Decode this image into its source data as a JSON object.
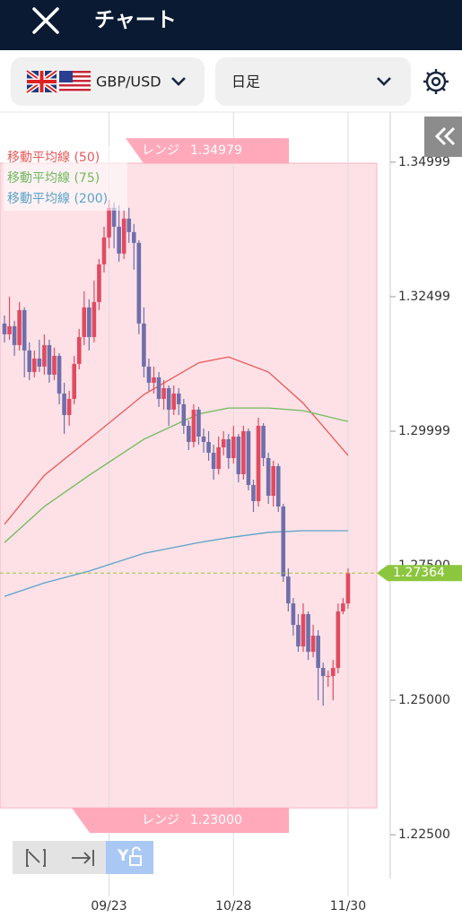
{
  "header": {
    "title": "チャート"
  },
  "toolbar": {
    "pair": "GBP/USD",
    "timeframe": "日足"
  },
  "chart_data": {
    "type": "candlestick",
    "categories": [
      null,
      null,
      null,
      null,
      null,
      null,
      null,
      null,
      null,
      null,
      null,
      null,
      null,
      null,
      null,
      null,
      null,
      null,
      null,
      null,
      null,
      "09/23",
      null,
      null,
      null,
      null,
      null,
      null,
      null,
      null,
      null,
      null,
      null,
      null,
      null,
      null,
      null,
      null,
      null,
      null,
      null,
      null,
      null,
      null,
      null,
      null,
      "10/28",
      null,
      null,
      null,
      null,
      null,
      null,
      null,
      null,
      null,
      null,
      null,
      null,
      null,
      null,
      null,
      null,
      null,
      null,
      null,
      null,
      null,
      null,
      "11/30"
    ],
    "open": [
      1.32,
      1.318,
      1.3195,
      1.316,
      1.3225,
      1.315,
      1.311,
      1.3135,
      1.312,
      1.316,
      1.3105,
      1.314,
      1.307,
      1.303,
      1.306,
      1.3125,
      1.3175,
      1.323,
      1.3175,
      1.324,
      1.331,
      1.336,
      1.3415,
      1.338,
      1.333,
      1.3395,
      1.337,
      1.335,
      1.32,
      1.312,
      1.309,
      1.31,
      1.306,
      1.308,
      1.304,
      1.307,
      1.305,
      1.301,
      1.298,
      1.304,
      1.299,
      1.298,
      1.296,
      1.293,
      1.297,
      1.2985,
      1.295,
      1.299,
      1.292,
      1.3,
      1.29,
      1.287,
      1.301,
      1.295,
      1.288,
      1.2935,
      1.286,
      1.273,
      1.268,
      1.264,
      1.26,
      1.266,
      1.259,
      1.262,
      1.256,
      1.2545,
      1.2545,
      1.256,
      1.2665,
      1.268
    ],
    "high": [
      1.3215,
      1.325,
      1.3205,
      1.324,
      1.323,
      1.3165,
      1.315,
      1.317,
      1.318,
      1.317,
      1.3155,
      1.3145,
      1.309,
      1.3075,
      1.314,
      1.319,
      1.326,
      1.3245,
      1.328,
      1.332,
      1.338,
      1.343,
      1.3425,
      1.342,
      1.341,
      1.3415,
      1.3385,
      1.3355,
      1.323,
      1.3135,
      1.312,
      1.311,
      1.3095,
      1.3085,
      1.3085,
      1.308,
      1.306,
      1.302,
      1.305,
      1.3045,
      1.3005,
      1.3,
      1.2975,
      1.299,
      1.3,
      1.2995,
      1.301,
      1.2995,
      1.301,
      1.3005,
      1.291,
      1.3025,
      1.3015,
      1.296,
      1.2945,
      1.294,
      1.2865,
      1.2745,
      1.269,
      1.266,
      1.268,
      1.2665,
      1.264,
      1.263,
      1.257,
      1.2555,
      1.2575,
      1.268,
      1.269,
      1.2745
    ],
    "low": [
      1.3165,
      1.317,
      1.314,
      1.315,
      1.31,
      1.3095,
      1.31,
      1.311,
      1.3105,
      1.309,
      1.3095,
      1.305,
      1.2995,
      1.301,
      1.305,
      1.3115,
      1.316,
      1.315,
      1.3165,
      1.3225,
      1.3295,
      1.334,
      1.334,
      1.3315,
      1.332,
      1.335,
      1.33,
      1.318,
      1.31,
      1.3075,
      1.307,
      1.3045,
      1.304,
      1.301,
      1.303,
      1.303,
      1.2995,
      1.2965,
      1.297,
      1.2975,
      1.296,
      1.2945,
      1.291,
      1.292,
      1.2955,
      1.293,
      1.294,
      1.2905,
      1.291,
      1.289,
      1.285,
      1.286,
      1.2935,
      1.2865,
      1.286,
      1.285,
      1.272,
      1.2665,
      1.262,
      1.259,
      1.259,
      1.2575,
      1.258,
      1.25,
      1.249,
      1.2525,
      1.25,
      1.255,
      1.266,
      1.267
    ],
    "close": [
      1.318,
      1.3195,
      1.316,
      1.3225,
      1.315,
      1.311,
      1.3135,
      1.312,
      1.316,
      1.3105,
      1.314,
      1.307,
      1.303,
      1.306,
      1.3125,
      1.3175,
      1.323,
      1.3175,
      1.324,
      1.331,
      1.336,
      1.3415,
      1.338,
      1.333,
      1.3395,
      1.337,
      1.335,
      1.32,
      1.312,
      1.309,
      1.31,
      1.306,
      1.308,
      1.304,
      1.307,
      1.305,
      1.301,
      1.298,
      1.304,
      1.299,
      1.298,
      1.296,
      1.293,
      1.297,
      1.2985,
      1.295,
      1.299,
      1.292,
      1.3,
      1.29,
      1.287,
      1.301,
      1.295,
      1.288,
      1.2935,
      1.286,
      1.273,
      1.268,
      1.264,
      1.26,
      1.266,
      1.259,
      1.262,
      1.256,
      1.2545,
      1.2545,
      1.256,
      1.2665,
      1.268,
      1.27364
    ],
    "up_color": "#e04b62",
    "down_color": "#6f6fab",
    "series": [
      {
        "name": "移動平均線 (50)",
        "color": "#e8585a",
        "x": [
          0,
          8,
          17,
          28,
          39,
          45,
          53,
          60,
          69
        ],
        "values": [
          1.2827,
          1.2918,
          1.2985,
          1.3068,
          1.3127,
          1.3138,
          1.311,
          1.3052,
          1.2955
        ]
      },
      {
        "name": "移動平均線 (75)",
        "color": "#6dba5c",
        "x": [
          0,
          8,
          17,
          28,
          39,
          45,
          53,
          60,
          69
        ],
        "values": [
          1.2793,
          1.286,
          1.2918,
          1.2985,
          1.3032,
          1.3043,
          1.3043,
          1.3038,
          1.3018
        ]
      },
      {
        "name": "移動平均線 (200)",
        "color": "#5ba3c9",
        "x": [
          0,
          8,
          17,
          28,
          39,
          45,
          53,
          60,
          69
        ],
        "values": [
          1.2693,
          1.2718,
          1.274,
          1.2773,
          1.2793,
          1.2802,
          1.2812,
          1.2815,
          1.2815
        ]
      }
    ],
    "ylim": [
      1.2177,
      1.3593
    ],
    "yticks": [
      1.34999,
      1.32499,
      1.29999,
      {
        "value": 1.275,
        "label": "1.27500"
      },
      {
        "value": 1.25,
        "label": "1.25000"
      },
      {
        "value": 1.225,
        "label": "1.22500"
      }
    ],
    "range": {
      "label": "レンジ",
      "upper": 1.34979,
      "lower": {
        "value": 1.23,
        "label": "1.23000"
      }
    },
    "current_price": 1.27364
  }
}
